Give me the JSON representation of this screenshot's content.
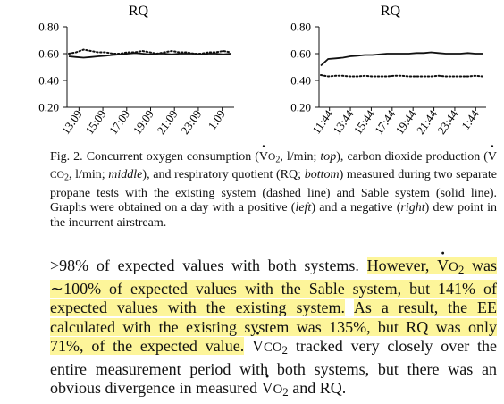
{
  "chart_data": [
    {
      "type": "line",
      "title": "RQ",
      "ylim": [
        0.2,
        0.8
      ],
      "yticks": [
        "0.20",
        "0.40",
        "0.60",
        "0.80"
      ],
      "xticks": [
        "13:09",
        "15:09",
        "17:09",
        "19:09",
        "21:09",
        "23:09",
        "1:09"
      ],
      "grid": false,
      "series": [
        {
          "style": "solid",
          "values": [
            0.58,
            0.575,
            0.57,
            0.575,
            0.58,
            0.585,
            0.59,
            0.595,
            0.6,
            0.605,
            0.6,
            0.595,
            0.6,
            0.6,
            0.595,
            0.6,
            0.6,
            0.6,
            0.595,
            0.6,
            0.6,
            0.595,
            0.6
          ]
        },
        {
          "style": "dotted",
          "values": [
            0.6,
            0.61,
            0.63,
            0.62,
            0.61,
            0.61,
            0.6,
            0.6,
            0.61,
            0.61,
            0.62,
            0.61,
            0.6,
            0.61,
            0.62,
            0.61,
            0.61,
            0.6,
            0.6,
            0.61,
            0.61,
            0.62,
            0.61
          ]
        }
      ]
    },
    {
      "type": "line",
      "title": "RQ",
      "ylim": [
        0.2,
        0.8
      ],
      "yticks": [
        "0.20",
        "0.40",
        "0.60",
        "0.80"
      ],
      "xticks": [
        "11:44",
        "13:44",
        "15:44",
        "17:44",
        "19:44",
        "21:44",
        "23:44",
        "1:44"
      ],
      "grid": false,
      "series": [
        {
          "style": "solid",
          "values": [
            0.51,
            0.56,
            0.565,
            0.57,
            0.58,
            0.585,
            0.59,
            0.59,
            0.595,
            0.6,
            0.6,
            0.6,
            0.6,
            0.605,
            0.605,
            0.61,
            0.605,
            0.6,
            0.6,
            0.6,
            0.605,
            0.6,
            0.6
          ]
        },
        {
          "style": "dotted",
          "values": [
            0.44,
            0.43,
            0.435,
            0.435,
            0.43,
            0.43,
            0.435,
            0.43,
            0.43,
            0.43,
            0.435,
            0.435,
            0.43,
            0.43,
            0.43,
            0.43,
            0.435,
            0.43,
            0.43,
            0.43,
            0.43,
            0.435,
            0.43
          ]
        }
      ]
    }
  ],
  "caption": {
    "p1": "Fig. 2. Concurrent oxygen consumption (",
    "v": "V",
    "o2": "O",
    "two": "2",
    "p2": ", l/min; ",
    "top": "top",
    "p3": "), carbon dioxide production (",
    "co2": "CO",
    "p4": ", l/min; ",
    "middle": "middle",
    "p5": "), and respiratory quotient (RQ; ",
    "bottom": "bottom",
    "p6": ") measured during two separate propane tests with the existing system (dashed line) and Sable system (solid line). Graphs were obtained on a day with a positive (",
    "left": "left",
    "p7": ") and a negative (",
    "right": "right",
    "p8": ") dew point in the incurrent airstream."
  },
  "body": {
    "t1": ">98% of expected values with both systems. ",
    "h1": "However, ",
    "v": "V",
    "o": "O",
    "two": "2",
    "h2": " was ∼100% of expected values with the Sable system, but 141% of expected values with the existing system.",
    "h3": "As a result, the EE calculated with the existing system was 135%, but RQ was only 71%, of the expected value.",
    "co": "CO",
    "t2": " tracked very closely over the entire measurement period with both systems, but there was an obvious divergence in measured ",
    "t3": " and RQ."
  }
}
